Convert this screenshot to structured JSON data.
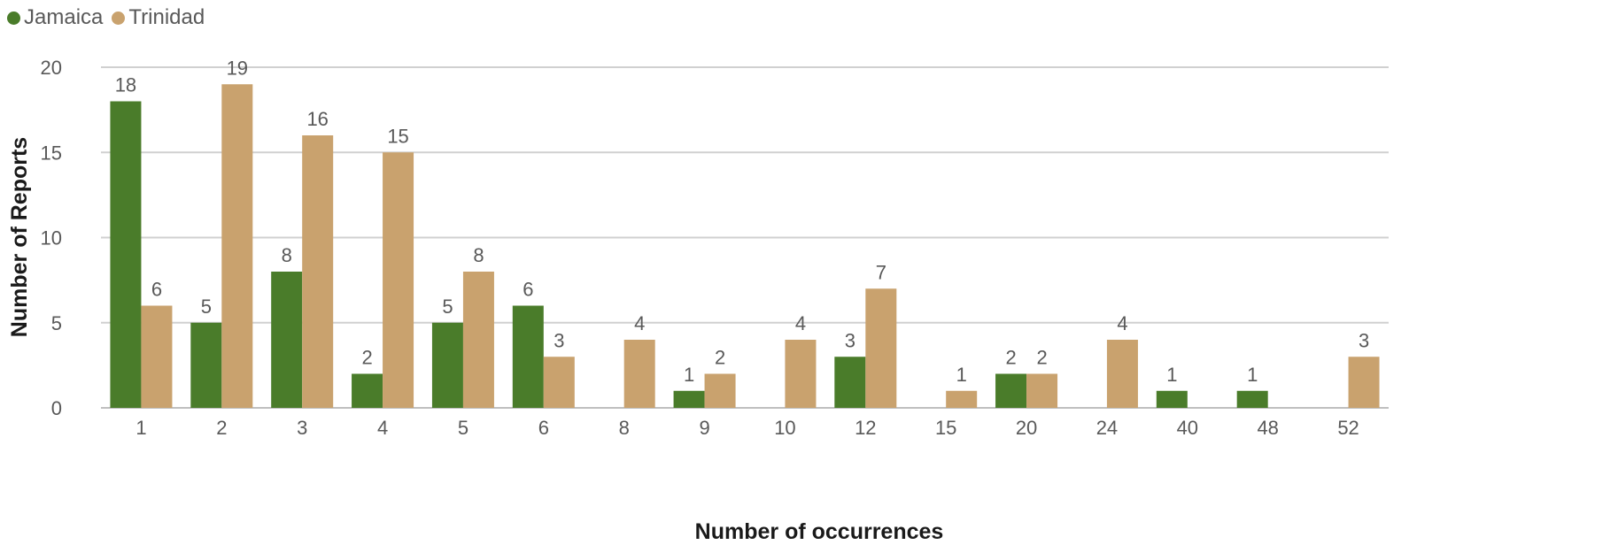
{
  "chart_data": {
    "type": "bar",
    "title": "",
    "xlabel": "Number of occurrences",
    "ylabel": "Number of Reports",
    "ylim": [
      0,
      20
    ],
    "yticks": [
      0,
      5,
      10,
      15,
      20
    ],
    "grid": true,
    "legend_position": "top-left",
    "categories": [
      "1",
      "2",
      "3",
      "4",
      "5",
      "6",
      "8",
      "9",
      "10",
      "12",
      "15",
      "20",
      "24",
      "40",
      "48",
      "52"
    ],
    "series": [
      {
        "name": "Jamaica",
        "color": "#4a7c2a",
        "values": [
          18,
          5,
          8,
          2,
          5,
          6,
          null,
          1,
          null,
          3,
          null,
          2,
          null,
          1,
          1,
          null
        ]
      },
      {
        "name": "Trinidad",
        "color": "#c9a26e",
        "values": [
          6,
          19,
          16,
          15,
          8,
          3,
          4,
          2,
          4,
          7,
          1,
          2,
          4,
          null,
          null,
          3
        ]
      }
    ]
  }
}
